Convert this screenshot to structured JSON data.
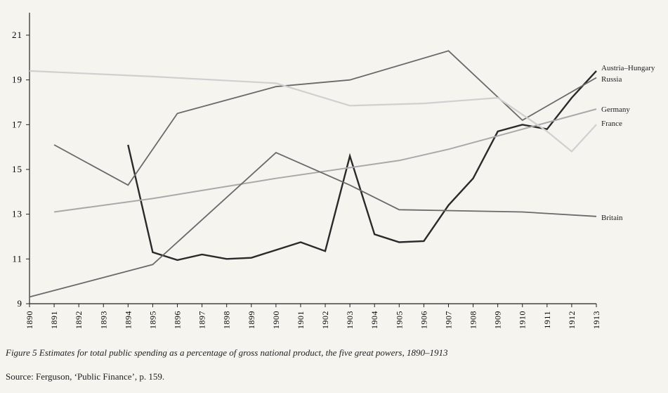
{
  "chart_data": {
    "type": "line",
    "title": "",
    "xlabel": "",
    "ylabel": "",
    "x_labels": [
      "1890",
      "1891",
      "1892",
      "1893",
      "1894",
      "1895",
      "1896",
      "1897",
      "1898",
      "1899",
      "1900",
      "1901",
      "1902",
      "1903",
      "1904",
      "1905",
      "1906",
      "1907",
      "1908",
      "1909",
      "1910",
      "1911",
      "1912",
      "1913"
    ],
    "xlim": [
      1890,
      1913
    ],
    "ylim": [
      9,
      22
    ],
    "y_ticks": [
      9,
      11,
      13,
      15,
      17,
      19,
      21
    ],
    "y_tick_labels": [
      "9",
      "11",
      "13",
      "15",
      "17",
      "19",
      "21"
    ],
    "grid": false,
    "legend": "labels at line ends",
    "series": [
      {
        "name": "Austria–Hungary",
        "color": "#2a2a2a",
        "width": 2.4,
        "points": [
          [
            1894,
            16.1
          ],
          [
            1895,
            11.3
          ],
          [
            1896,
            10.95
          ],
          [
            1897,
            11.2
          ],
          [
            1898,
            11.0
          ],
          [
            1899,
            11.05
          ],
          [
            1900,
            11.4
          ],
          [
            1901,
            11.75
          ],
          [
            1902,
            11.35
          ],
          [
            1903,
            15.6
          ],
          [
            1904,
            12.1
          ],
          [
            1905,
            11.75
          ],
          [
            1906,
            11.8
          ],
          [
            1907,
            13.4
          ],
          [
            1908,
            14.6
          ],
          [
            1909,
            16.7
          ],
          [
            1910,
            17.0
          ],
          [
            1911,
            16.8
          ],
          [
            1912,
            18.2
          ],
          [
            1913,
            19.4
          ]
        ]
      },
      {
        "name": "Russia",
        "color": "#6a6a6a",
        "width": 1.8,
        "points": [
          [
            1891,
            16.1
          ],
          [
            1894,
            14.3
          ],
          [
            1896,
            17.5
          ],
          [
            1900,
            18.7
          ],
          [
            1903,
            19.0
          ],
          [
            1907,
            20.3
          ],
          [
            1910,
            17.2
          ],
          [
            1913,
            19.1
          ]
        ]
      },
      {
        "name": "Germany",
        "color": "#a9a9a9",
        "width": 2.0,
        "points": [
          [
            1891,
            13.1
          ],
          [
            1895,
            13.7
          ],
          [
            1900,
            14.6
          ],
          [
            1905,
            15.4
          ],
          [
            1907,
            15.9
          ],
          [
            1909,
            16.5
          ],
          [
            1913,
            17.7
          ]
        ]
      },
      {
        "name": "France",
        "color": "#d0d0d0",
        "width": 2.2,
        "points": [
          [
            1890,
            19.4
          ],
          [
            1895,
            19.15
          ],
          [
            1900,
            18.85
          ],
          [
            1903,
            17.85
          ],
          [
            1906,
            17.95
          ],
          [
            1909,
            18.2
          ],
          [
            1911,
            16.7
          ],
          [
            1912,
            15.8
          ],
          [
            1913,
            17.0
          ]
        ]
      },
      {
        "name": "Britain",
        "color": "#6a6a6a",
        "width": 1.8,
        "points": [
          [
            1890,
            9.3
          ],
          [
            1895,
            10.75
          ],
          [
            1900,
            15.75
          ],
          [
            1903,
            14.3
          ],
          [
            1905,
            13.2
          ],
          [
            1910,
            13.1
          ],
          [
            1913,
            12.9
          ]
        ]
      }
    ]
  },
  "caption": "Figure 5   Estimates for total public spending as a percentage of gross national product, the five great powers, 1890–1913",
  "source": "Source: Ferguson, ‘Public Finance’, p. 159."
}
